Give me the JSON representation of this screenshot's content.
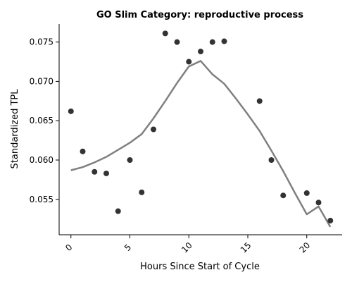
{
  "chart_data": {
    "type": "scatter",
    "title": "GO Slim Category: reproductive process",
    "xlabel": "Hours Since Start of Cycle",
    "ylabel": "Standardized TPL",
    "xlim": [
      -1,
      23
    ],
    "ylim": [
      0.0505,
      0.0773
    ],
    "xticks": [
      0,
      5,
      10,
      15,
      20
    ],
    "xtick_labels": [
      "0",
      "5",
      "10",
      "15",
      "20"
    ],
    "yticks": [
      0.055,
      0.06,
      0.065,
      0.07,
      0.075
    ],
    "ytick_labels": [
      "0.055",
      "0.060",
      "0.065",
      "0.070",
      "0.075"
    ],
    "grid": false,
    "colors": {
      "points": "#333333",
      "trend": "#808080"
    },
    "series": [
      {
        "type": "scatter",
        "x": [
          0,
          1,
          2,
          3,
          4,
          5,
          6,
          7,
          8,
          9,
          10,
          11,
          12,
          13,
          16,
          17,
          18,
          20,
          21,
          22
        ],
        "y": [
          0.0662,
          0.0611,
          0.0585,
          0.0583,
          0.0535,
          0.06,
          0.0559,
          0.0639,
          0.0761,
          0.075,
          0.0725,
          0.0738,
          0.075,
          0.0751,
          0.0675,
          0.06,
          0.0555,
          0.0558,
          0.0546,
          0.0523
        ]
      },
      {
        "type": "line",
        "x": [
          0,
          1,
          2,
          3,
          4,
          5,
          6,
          7,
          8,
          9,
          10,
          11,
          12,
          13,
          14,
          15,
          16,
          17,
          18,
          19,
          20,
          21,
          22
        ],
        "y": [
          0.0587,
          0.0591,
          0.0597,
          0.0604,
          0.0613,
          0.0622,
          0.0633,
          0.0653,
          0.0675,
          0.0698,
          0.0719,
          0.0726,
          0.0709,
          0.0697,
          0.0678,
          0.0658,
          0.0637,
          0.0612,
          0.0586,
          0.0558,
          0.0531,
          0.0541,
          0.0515
        ]
      }
    ]
  }
}
